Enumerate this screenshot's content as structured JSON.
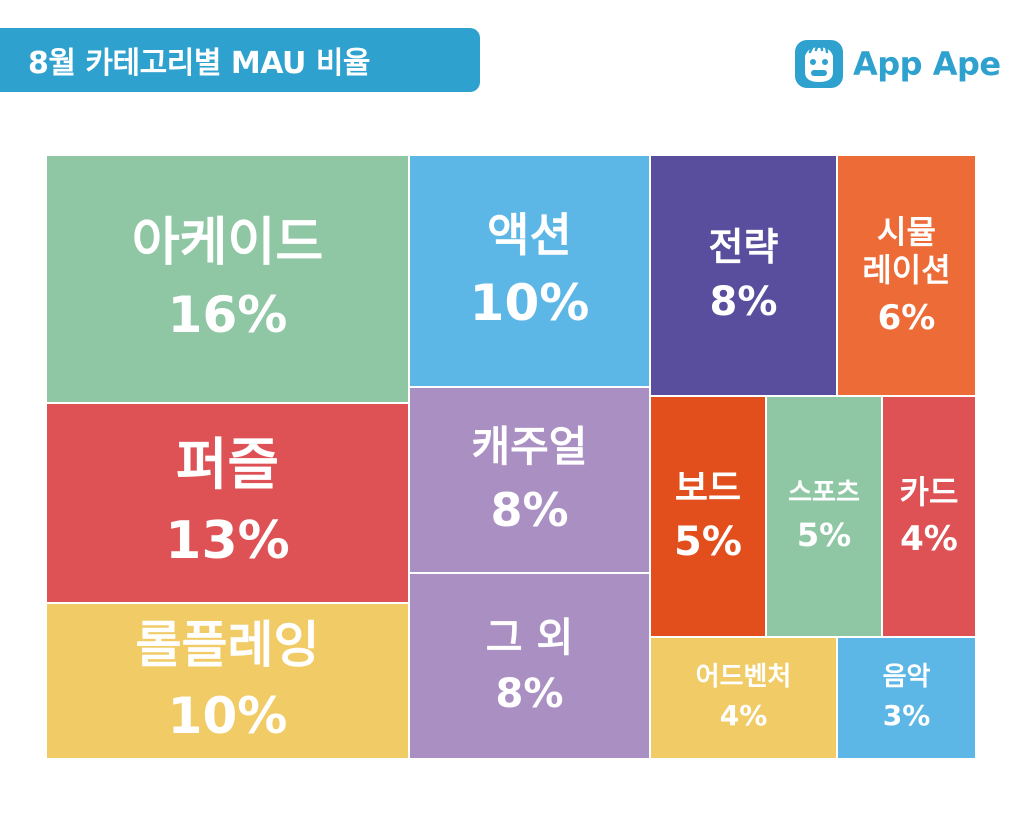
{
  "header": {
    "title": "8월 카테고리별 MAU 비율",
    "logo_text": "App Ape",
    "brand_color": "#2fa1cf"
  },
  "chart_data": {
    "type": "treemap",
    "title": "8월 카테고리별 MAU 비율",
    "unit": "%",
    "items": [
      {
        "label": "아케이드",
        "value": 16,
        "display": "16%",
        "color": "#8fc6a4"
      },
      {
        "label": "퍼즐",
        "value": 13,
        "display": "13%",
        "color": "#de5255"
      },
      {
        "label": "롤플레잉",
        "value": 10,
        "display": "10%",
        "color": "#f0cb66"
      },
      {
        "label": "액션",
        "value": 10,
        "display": "10%",
        "color": "#5cb7e6"
      },
      {
        "label": "캐주얼",
        "value": 8,
        "display": "8%",
        "color": "#aa8fc3"
      },
      {
        "label": "그 외",
        "value": 8,
        "display": "8%",
        "color": "#aa8fc3"
      },
      {
        "label": "전략",
        "value": 8,
        "display": "8%",
        "color": "#594e9e"
      },
      {
        "label": "시뮬레이션",
        "value": 6,
        "display": "6%",
        "color": "#ec6b37"
      },
      {
        "label": "보드",
        "value": 5,
        "display": "5%",
        "color": "#e34e1d"
      },
      {
        "label": "스포츠",
        "value": 5,
        "display": "5%",
        "color": "#8fc6a4"
      },
      {
        "label": "카드",
        "value": 4,
        "display": "4%",
        "color": "#de5255"
      },
      {
        "label": "어드벤처",
        "value": 4,
        "display": "4%",
        "color": "#f0cb66"
      },
      {
        "label": "음악",
        "value": 3,
        "display": "3%",
        "color": "#5cb7e6"
      }
    ]
  }
}
